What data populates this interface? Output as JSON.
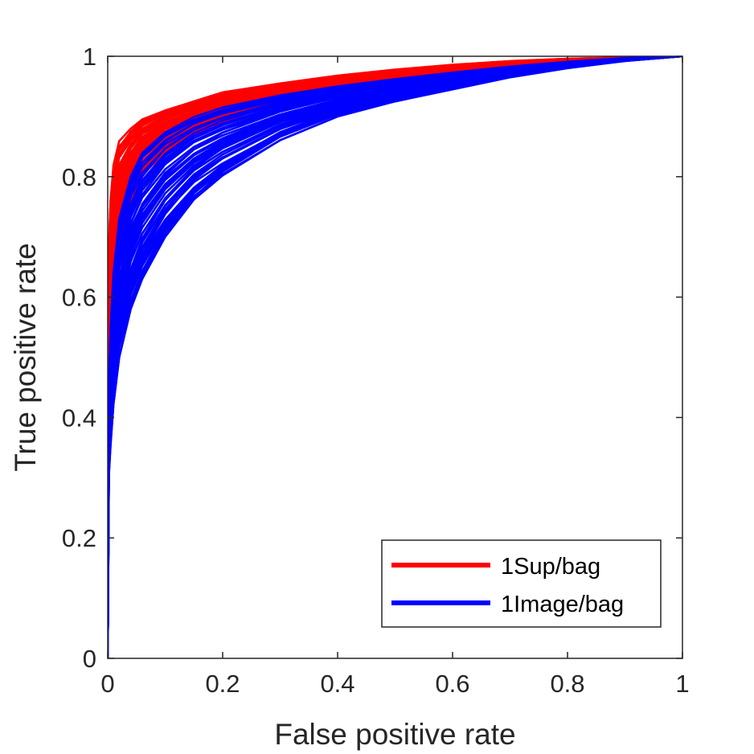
{
  "chart_data": {
    "type": "line",
    "title": "",
    "xlabel": "False positive rate",
    "ylabel": "True positive rate",
    "xlim": [
      0,
      1
    ],
    "ylim": [
      0,
      1
    ],
    "x_ticks": [
      0,
      0.2,
      0.4,
      0.6,
      0.8,
      1
    ],
    "y_ticks": [
      0,
      0.2,
      0.4,
      0.6,
      0.8,
      1
    ],
    "x_tick_labels": [
      "0",
      "0.2",
      "0.4",
      "0.6",
      "0.8",
      "1"
    ],
    "y_tick_labels": [
      "0",
      "0.2",
      "0.4",
      "0.6",
      "0.8",
      "1"
    ],
    "grid": false,
    "legend_position": "bottom-right",
    "curves_per_series": 40,
    "series": [
      {
        "name": "1Sup/bag",
        "color": "#ff0000",
        "envelope_low": {
          "x": [
            0,
            0.002,
            0.005,
            0.01,
            0.02,
            0.04,
            0.06,
            0.1,
            0.15,
            0.2,
            0.3,
            0.4,
            0.5,
            0.6,
            0.7,
            0.8,
            0.9,
            1.0
          ],
          "y": [
            0,
            0.38,
            0.45,
            0.55,
            0.66,
            0.75,
            0.8,
            0.84,
            0.87,
            0.89,
            0.925,
            0.945,
            0.96,
            0.972,
            0.982,
            0.99,
            0.996,
            1.0
          ]
        },
        "envelope_high": {
          "x": [
            0,
            0.002,
            0.005,
            0.01,
            0.02,
            0.04,
            0.06,
            0.1,
            0.15,
            0.2,
            0.3,
            0.4,
            0.5,
            0.6,
            0.7,
            0.8,
            0.9,
            1.0
          ],
          "y": [
            0,
            0.68,
            0.76,
            0.82,
            0.86,
            0.88,
            0.895,
            0.91,
            0.925,
            0.94,
            0.955,
            0.968,
            0.978,
            0.986,
            0.992,
            0.996,
            0.998,
            1.0
          ]
        }
      },
      {
        "name": "1Image/bag",
        "color": "#0000ff",
        "envelope_low": {
          "x": [
            0,
            0.002,
            0.005,
            0.01,
            0.02,
            0.04,
            0.06,
            0.1,
            0.15,
            0.2,
            0.3,
            0.4,
            0.5,
            0.6,
            0.7,
            0.8,
            0.9,
            1.0
          ],
          "y": [
            0,
            0.3,
            0.35,
            0.42,
            0.5,
            0.58,
            0.63,
            0.7,
            0.76,
            0.8,
            0.86,
            0.9,
            0.925,
            0.945,
            0.965,
            0.98,
            0.992,
            1.0
          ]
        },
        "envelope_high": {
          "x": [
            0,
            0.002,
            0.005,
            0.01,
            0.02,
            0.04,
            0.06,
            0.1,
            0.15,
            0.2,
            0.3,
            0.4,
            0.5,
            0.6,
            0.7,
            0.8,
            0.9,
            1.0
          ],
          "y": [
            0,
            0.45,
            0.55,
            0.64,
            0.73,
            0.8,
            0.84,
            0.875,
            0.9,
            0.915,
            0.935,
            0.95,
            0.962,
            0.973,
            0.983,
            0.991,
            0.997,
            1.0
          ]
        }
      }
    ]
  }
}
